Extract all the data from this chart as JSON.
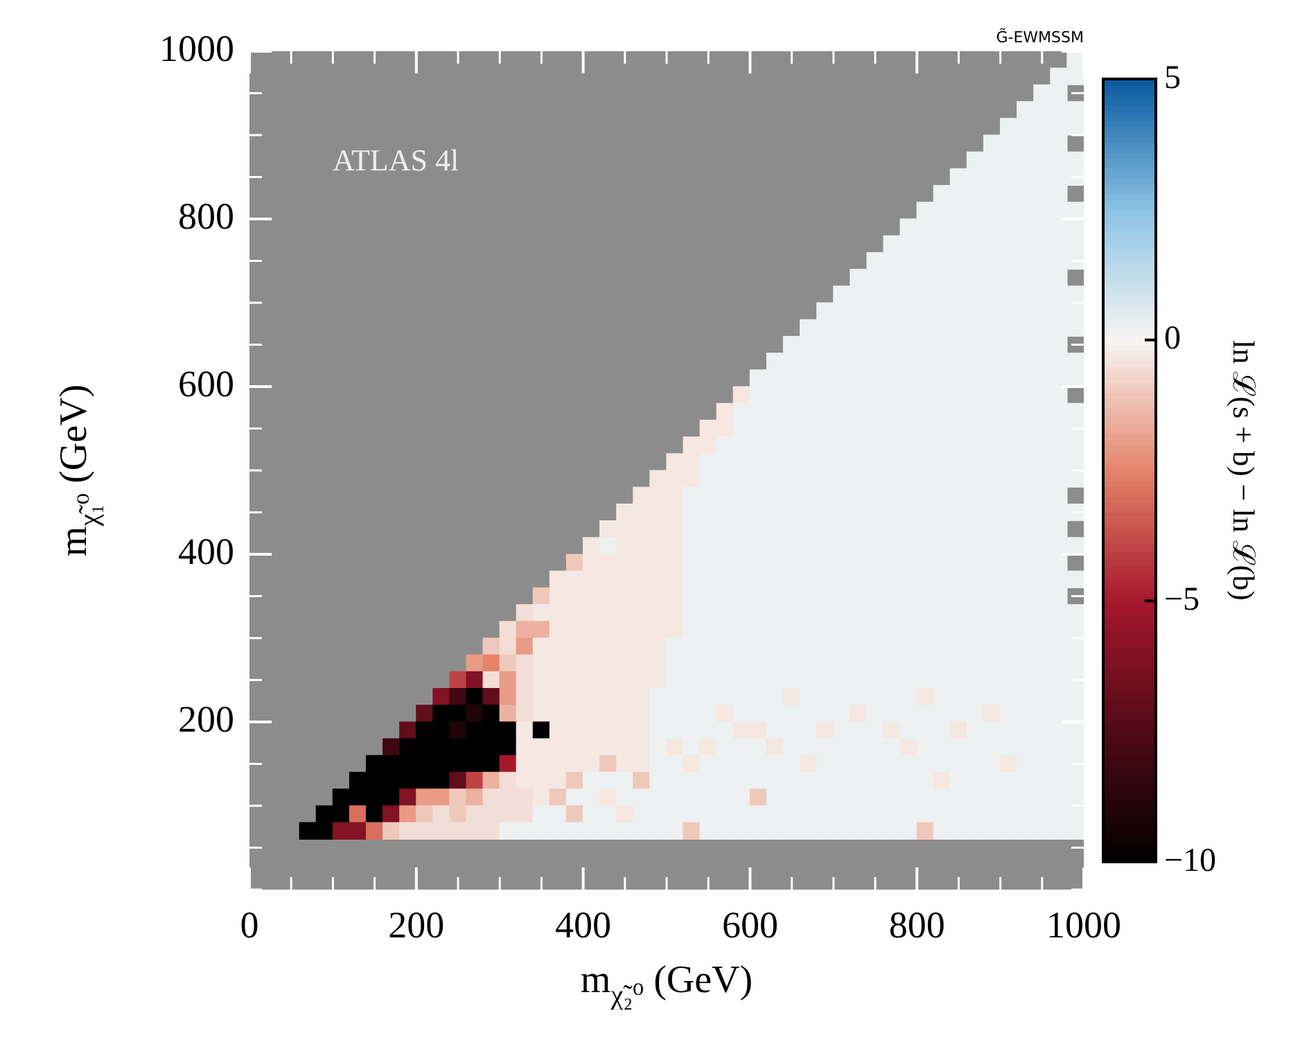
{
  "chart_data": {
    "type": "heatmap",
    "title": "G̃-EWMSSM",
    "xlabel": "m$_{χ̃₂⁰}$ (GeV)",
    "ylabel": "m$_{χ̃₁⁰}$ (GeV)",
    "clabel": "ln ℒ(s + b) − ln ℒ(b)",
    "annotations": [
      "ATLAS 4l"
    ],
    "xlim": [
      0,
      1000
    ],
    "ylim": [
      0,
      1000
    ],
    "xticks": [
      0,
      {
        "value": 50,
        "label": null
      },
      {
        "value": 100,
        "label": null
      },
      {
        "value": 150,
        "label": null
      },
      200,
      {
        "value": 250,
        "label": null
      },
      {
        "value": 300,
        "label": null
      },
      {
        "value": 350,
        "label": null
      },
      400,
      {
        "value": 450,
        "label": null
      },
      {
        "value": 500,
        "label": null
      },
      {
        "value": 550,
        "label": null
      },
      600,
      {
        "value": 650,
        "label": null
      },
      {
        "value": 700,
        "label": null
      },
      {
        "value": 750,
        "label": null
      },
      800,
      {
        "value": 850,
        "label": null
      },
      {
        "value": 900,
        "label": null
      },
      {
        "value": 950,
        "label": null
      },
      1000
    ],
    "yticks": [
      {
        "value": 0,
        "label": null
      },
      {
        "value": 50,
        "label": null
      },
      {
        "value": 100,
        "label": null
      },
      {
        "value": 150,
        "label": null
      },
      200,
      {
        "value": 250,
        "label": null
      },
      {
        "value": 300,
        "label": null
      },
      {
        "value": 350,
        "label": null
      },
      400,
      {
        "value": 450,
        "label": null
      },
      {
        "value": 500,
        "label": null
      },
      {
        "value": 550,
        "label": null
      },
      600,
      {
        "value": 650,
        "label": null
      },
      {
        "value": 700,
        "label": null
      },
      {
        "value": 750,
        "label": null
      },
      800,
      {
        "value": 850,
        "label": null
      },
      {
        "value": 900,
        "label": null
      },
      {
        "value": 950,
        "label": null
      },
      1000
    ],
    "clim": [
      -10,
      5
    ],
    "cticks": [
      -10,
      -5,
      0,
      5
    ],
    "x": [
      70,
      90,
      110,
      130,
      150,
      170,
      190,
      210,
      230,
      250,
      270,
      290,
      310,
      330,
      350,
      370,
      390,
      410,
      430,
      450,
      470,
      490,
      510,
      530,
      550,
      570,
      590,
      610,
      630,
      650,
      670,
      690,
      710,
      730,
      750,
      770,
      790,
      810,
      830,
      850,
      870,
      890,
      910,
      930,
      950,
      970,
      990
    ],
    "y": [
      990,
      970,
      950,
      930,
      910,
      890,
      870,
      850,
      830,
      810,
      790,
      770,
      750,
      730,
      710,
      690,
      670,
      650,
      630,
      610,
      590,
      570,
      550,
      530,
      510,
      490,
      470,
      450,
      430,
      410,
      390,
      370,
      350,
      330,
      310,
      290,
      270,
      250,
      230,
      210,
      190,
      170,
      150,
      130,
      110,
      90,
      70
    ],
    "cells": [
      [
        null,
        null,
        null,
        null,
        null,
        null,
        null,
        null,
        null,
        null,
        null,
        null,
        null,
        null,
        null,
        null,
        null,
        null,
        null,
        null,
        null,
        null,
        null,
        null,
        null,
        null,
        null,
        null,
        null,
        null,
        null,
        null,
        null,
        null,
        null,
        null,
        null,
        null,
        null,
        null,
        null,
        null,
        null,
        null,
        null,
        null,
        0.2
      ],
      [
        null,
        null,
        null,
        null,
        null,
        null,
        null,
        null,
        null,
        null,
        null,
        null,
        null,
        null,
        null,
        null,
        null,
        null,
        null,
        null,
        null,
        null,
        null,
        null,
        null,
        null,
        null,
        null,
        null,
        null,
        null,
        null,
        null,
        null,
        null,
        null,
        null,
        null,
        null,
        null,
        null,
        null,
        null,
        null,
        null,
        0.2,
        0.2
      ],
      [
        null,
        null,
        null,
        null,
        null,
        null,
        null,
        null,
        null,
        null,
        null,
        null,
        null,
        null,
        null,
        null,
        null,
        null,
        null,
        null,
        null,
        null,
        null,
        null,
        null,
        null,
        null,
        null,
        null,
        null,
        null,
        null,
        null,
        null,
        null,
        null,
        null,
        null,
        null,
        null,
        null,
        null,
        null,
        null,
        0.2,
        0.2,
        null
      ],
      [
        null,
        null,
        null,
        null,
        null,
        null,
        null,
        null,
        null,
        null,
        null,
        null,
        null,
        null,
        null,
        null,
        null,
        null,
        null,
        null,
        null,
        null,
        null,
        null,
        null,
        null,
        null,
        null,
        null,
        null,
        null,
        null,
        null,
        null,
        null,
        null,
        null,
        null,
        null,
        null,
        null,
        null,
        null,
        0.2,
        0.2,
        0.2,
        0.2
      ],
      [
        null,
        null,
        null,
        null,
        null,
        null,
        null,
        null,
        null,
        null,
        null,
        null,
        null,
        null,
        null,
        null,
        null,
        null,
        null,
        null,
        null,
        null,
        null,
        null,
        null,
        null,
        null,
        null,
        null,
        null,
        null,
        null,
        null,
        null,
        null,
        null,
        null,
        null,
        null,
        null,
        null,
        null,
        0.2,
        0.2,
        0.2,
        0.2,
        0.2
      ],
      [
        null,
        null,
        null,
        null,
        null,
        null,
        null,
        null,
        null,
        null,
        null,
        null,
        null,
        null,
        null,
        null,
        null,
        null,
        null,
        null,
        null,
        null,
        null,
        null,
        null,
        null,
        null,
        null,
        null,
        null,
        null,
        null,
        null,
        null,
        null,
        null,
        null,
        null,
        null,
        null,
        null,
        0.2,
        0.2,
        0.2,
        0.2,
        0.2,
        null
      ],
      [
        null,
        null,
        null,
        null,
        null,
        null,
        null,
        null,
        null,
        null,
        null,
        null,
        null,
        null,
        null,
        null,
        null,
        null,
        null,
        null,
        null,
        null,
        null,
        null,
        null,
        null,
        null,
        null,
        null,
        null,
        null,
        null,
        null,
        null,
        null,
        null,
        null,
        null,
        null,
        null,
        0.2,
        0.2,
        0.2,
        0.2,
        0.2,
        0.2,
        0.2
      ],
      [
        null,
        null,
        null,
        null,
        null,
        null,
        null,
        null,
        null,
        null,
        null,
        null,
        null,
        null,
        null,
        null,
        null,
        null,
        null,
        null,
        null,
        null,
        null,
        null,
        null,
        null,
        null,
        null,
        null,
        null,
        null,
        null,
        null,
        null,
        null,
        null,
        null,
        null,
        null,
        0.2,
        0.2,
        0.2,
        0.2,
        0.2,
        0.2,
        0.2,
        0.2
      ],
      [
        null,
        null,
        null,
        null,
        null,
        null,
        null,
        null,
        null,
        null,
        null,
        null,
        null,
        null,
        null,
        null,
        null,
        null,
        null,
        null,
        null,
        null,
        null,
        null,
        null,
        null,
        null,
        null,
        null,
        null,
        null,
        null,
        null,
        null,
        null,
        null,
        null,
        null,
        0.2,
        0.2,
        0.2,
        0.2,
        0.2,
        0.2,
        0.2,
        0.2,
        null
      ],
      [
        null,
        null,
        null,
        null,
        null,
        null,
        null,
        null,
        null,
        null,
        null,
        null,
        null,
        null,
        null,
        null,
        null,
        null,
        null,
        null,
        null,
        null,
        null,
        null,
        null,
        null,
        null,
        null,
        null,
        null,
        null,
        null,
        null,
        null,
        null,
        null,
        null,
        0.2,
        0.2,
        0.2,
        0.2,
        0.2,
        0.2,
        0.2,
        0.2,
        0.2,
        0.2
      ],
      [
        null,
        null,
        null,
        null,
        null,
        null,
        null,
        null,
        null,
        null,
        null,
        null,
        null,
        null,
        null,
        null,
        null,
        null,
        null,
        null,
        null,
        null,
        null,
        null,
        null,
        null,
        null,
        null,
        null,
        null,
        null,
        null,
        null,
        null,
        null,
        null,
        0.2,
        0.2,
        0.2,
        0.2,
        0.2,
        0.2,
        0.2,
        0.2,
        0.2,
        0.2,
        0.2
      ],
      [
        null,
        null,
        null,
        null,
        null,
        null,
        null,
        null,
        null,
        null,
        null,
        null,
        null,
        null,
        null,
        null,
        null,
        null,
        null,
        null,
        null,
        null,
        null,
        null,
        null,
        null,
        null,
        null,
        null,
        null,
        null,
        null,
        null,
        null,
        null,
        0.2,
        0.2,
        0.2,
        0.2,
        0.2,
        0.2,
        0.2,
        0.2,
        0.2,
        0.2,
        0.2,
        0.2
      ],
      [
        null,
        null,
        null,
        null,
        null,
        null,
        null,
        null,
        null,
        null,
        null,
        null,
        null,
        null,
        null,
        null,
        null,
        null,
        null,
        null,
        null,
        null,
        null,
        null,
        null,
        null,
        null,
        null,
        null,
        null,
        null,
        null,
        null,
        null,
        0.2,
        0.2,
        0.2,
        0.2,
        0.2,
        0.2,
        0.2,
        0.2,
        0.2,
        0.2,
        0.2,
        0.2,
        0.2
      ],
      [
        null,
        null,
        null,
        null,
        null,
        null,
        null,
        null,
        null,
        null,
        null,
        null,
        null,
        null,
        null,
        null,
        null,
        null,
        null,
        null,
        null,
        null,
        null,
        null,
        null,
        null,
        null,
        null,
        null,
        null,
        null,
        null,
        null,
        0.2,
        0.2,
        0.2,
        0.2,
        0.2,
        0.2,
        0.2,
        0.2,
        0.2,
        0.2,
        0.2,
        0.2,
        0.2,
        null
      ],
      [
        null,
        null,
        null,
        null,
        null,
        null,
        null,
        null,
        null,
        null,
        null,
        null,
        null,
        null,
        null,
        null,
        null,
        null,
        null,
        null,
        null,
        null,
        null,
        null,
        null,
        null,
        null,
        null,
        null,
        null,
        null,
        null,
        0.2,
        0.2,
        0.2,
        0.2,
        0.2,
        0.2,
        0.2,
        0.2,
        0.2,
        0.2,
        0.2,
        0.2,
        0.2,
        0.2,
        0.2
      ],
      [
        null,
        null,
        null,
        null,
        null,
        null,
        null,
        null,
        null,
        null,
        null,
        null,
        null,
        null,
        null,
        null,
        null,
        null,
        null,
        null,
        null,
        null,
        null,
        null,
        null,
        null,
        null,
        null,
        null,
        null,
        null,
        0.2,
        0.2,
        0.2,
        0.2,
        0.2,
        0.2,
        0.2,
        0.2,
        0.2,
        0.2,
        0.2,
        0.2,
        0.2,
        0.2,
        0.2,
        0.2
      ],
      [
        null,
        null,
        null,
        null,
        null,
        null,
        null,
        null,
        null,
        null,
        null,
        null,
        null,
        null,
        null,
        null,
        null,
        null,
        null,
        null,
        null,
        null,
        null,
        null,
        null,
        null,
        null,
        null,
        null,
        null,
        0.2,
        0.2,
        0.2,
        0.2,
        0.2,
        0.2,
        0.2,
        0.2,
        0.2,
        0.2,
        0.2,
        0.2,
        0.2,
        0.2,
        0.2,
        0.2,
        0.2
      ],
      [
        null,
        null,
        null,
        null,
        null,
        null,
        null,
        null,
        null,
        null,
        null,
        null,
        null,
        null,
        null,
        null,
        null,
        null,
        null,
        null,
        null,
        null,
        null,
        null,
        null,
        null,
        null,
        null,
        null,
        0.2,
        0.2,
        0.2,
        0.2,
        0.2,
        0.2,
        0.2,
        0.2,
        0.2,
        0.2,
        0.2,
        0.2,
        0.2,
        0.2,
        0.2,
        0.2,
        0.2,
        null
      ],
      [
        null,
        null,
        null,
        null,
        null,
        null,
        null,
        null,
        null,
        null,
        null,
        null,
        null,
        null,
        null,
        null,
        null,
        null,
        null,
        null,
        null,
        null,
        null,
        null,
        null,
        null,
        null,
        null,
        0.2,
        0.2,
        0.2,
        0.2,
        0.2,
        0.2,
        0.2,
        0.2,
        0.2,
        0.2,
        0.2,
        0.2,
        0.2,
        0.2,
        0.2,
        0.2,
        0.2,
        0.2,
        0.2
      ],
      [
        null,
        null,
        null,
        null,
        null,
        null,
        null,
        null,
        null,
        null,
        null,
        null,
        null,
        null,
        null,
        null,
        null,
        null,
        null,
        null,
        null,
        null,
        null,
        null,
        null,
        null,
        null,
        0.2,
        0.2,
        0.2,
        0.2,
        0.2,
        0.2,
        0.2,
        0.2,
        0.2,
        0.2,
        0.2,
        0.2,
        0.2,
        0.2,
        0.2,
        0.2,
        0.2,
        0.2,
        0.2,
        0.2
      ],
      [
        null,
        null,
        null,
        null,
        null,
        null,
        null,
        null,
        null,
        null,
        null,
        null,
        null,
        null,
        null,
        null,
        null,
        null,
        null,
        null,
        null,
        null,
        null,
        null,
        null,
        null,
        -0.3,
        0.2,
        0.2,
        0.2,
        0.2,
        0.2,
        0.2,
        0.2,
        0.2,
        0.2,
        0.2,
        0.2,
        0.2,
        0.2,
        0.2,
        0.2,
        0.2,
        0.2,
        0.2,
        0.2,
        null
      ],
      [
        null,
        null,
        null,
        null,
        null,
        null,
        null,
        null,
        null,
        null,
        null,
        null,
        null,
        null,
        null,
        null,
        null,
        null,
        null,
        null,
        null,
        null,
        null,
        null,
        null,
        -0.3,
        0.2,
        0.2,
        0.2,
        0.2,
        0.2,
        0.2,
        0.2,
        0.2,
        0.2,
        0.2,
        0.2,
        0.2,
        0.2,
        0.2,
        0.2,
        0.2,
        0.2,
        0.2,
        0.2,
        0.2,
        0.2
      ],
      [
        null,
        null,
        null,
        null,
        null,
        null,
        null,
        null,
        null,
        null,
        null,
        null,
        null,
        null,
        null,
        null,
        null,
        null,
        null,
        null,
        null,
        null,
        null,
        null,
        -0.3,
        -0.3,
        0.2,
        0.2,
        0.2,
        0.2,
        0.2,
        0.2,
        0.2,
        0.2,
        0.2,
        0.2,
        0.2,
        0.2,
        0.2,
        0.2,
        0.2,
        0.2,
        0.2,
        0.2,
        0.2,
        0.2,
        0.2
      ],
      [
        null,
        null,
        null,
        null,
        null,
        null,
        null,
        null,
        null,
        null,
        null,
        null,
        null,
        null,
        null,
        null,
        null,
        null,
        null,
        null,
        null,
        null,
        null,
        -0.3,
        -0.3,
        0.2,
        0.2,
        0.2,
        0.2,
        0.2,
        0.2,
        0.2,
        0.2,
        0.2,
        0.2,
        0.2,
        0.2,
        0.2,
        0.2,
        0.2,
        0.2,
        0.2,
        0.2,
        0.2,
        0.2,
        0.2,
        0.2
      ],
      [
        null,
        null,
        null,
        null,
        null,
        null,
        null,
        null,
        null,
        null,
        null,
        null,
        null,
        null,
        null,
        null,
        null,
        null,
        null,
        null,
        null,
        null,
        -0.3,
        -0.3,
        0.2,
        0.2,
        0.2,
        0.2,
        0.2,
        0.2,
        0.2,
        0.2,
        0.2,
        0.2,
        0.2,
        0.2,
        0.2,
        0.2,
        0.2,
        0.2,
        0.2,
        0.2,
        0.2,
        0.2,
        0.2,
        0.2,
        0.2
      ],
      [
        null,
        null,
        null,
        null,
        null,
        null,
        null,
        null,
        null,
        null,
        null,
        null,
        null,
        null,
        null,
        null,
        null,
        null,
        null,
        null,
        null,
        -0.3,
        -0.3,
        -0.3,
        0.2,
        0.2,
        0.2,
        0.2,
        0.2,
        0.2,
        0.2,
        0.2,
        0.2,
        0.2,
        0.2,
        0.2,
        0.2,
        0.2,
        0.2,
        0.2,
        0.2,
        0.2,
        0.2,
        0.2,
        0.2,
        0.2,
        0.2
      ],
      [
        null,
        null,
        null,
        null,
        null,
        null,
        null,
        null,
        null,
        null,
        null,
        null,
        null,
        null,
        null,
        null,
        null,
        null,
        null,
        null,
        -0.3,
        -0.3,
        -0.3,
        0.2,
        0.2,
        0.2,
        0.2,
        0.2,
        0.2,
        0.2,
        0.2,
        0.2,
        0.2,
        0.2,
        0.2,
        0.2,
        0.2,
        0.2,
        0.2,
        0.2,
        0.2,
        0.2,
        0.2,
        0.2,
        0.2,
        0.2,
        null
      ],
      [
        null,
        null,
        null,
        null,
        null,
        null,
        null,
        null,
        null,
        null,
        null,
        null,
        null,
        null,
        null,
        null,
        null,
        null,
        null,
        -0.3,
        -0.3,
        -0.3,
        -0.3,
        0.2,
        0.2,
        0.2,
        0.2,
        0.2,
        0.2,
        0.2,
        0.2,
        0.2,
        0.2,
        0.2,
        0.2,
        0.2,
        0.2,
        0.2,
        0.2,
        0.2,
        0.2,
        0.2,
        0.2,
        0.2,
        0.2,
        0.2,
        0.2
      ],
      [
        null,
        null,
        null,
        null,
        null,
        null,
        null,
        null,
        null,
        null,
        null,
        null,
        null,
        null,
        null,
        null,
        null,
        null,
        -0.3,
        -0.3,
        -0.3,
        -0.3,
        -0.3,
        0.2,
        0.2,
        0.2,
        0.2,
        0.2,
        0.2,
        0.2,
        0.2,
        0.2,
        0.2,
        0.2,
        0.2,
        0.2,
        0.2,
        0.2,
        0.2,
        0.2,
        0.2,
        0.2,
        0.2,
        0.2,
        0.2,
        0.2,
        null
      ],
      [
        null,
        null,
        null,
        null,
        null,
        null,
        null,
        null,
        null,
        null,
        null,
        null,
        null,
        null,
        null,
        null,
        null,
        -0.3,
        0.2,
        -0.3,
        -0.3,
        -0.3,
        -0.3,
        0.2,
        0.2,
        0.2,
        0.2,
        0.2,
        0.2,
        0.2,
        0.2,
        0.2,
        0.2,
        0.2,
        0.2,
        0.2,
        0.2,
        0.2,
        0.2,
        0.2,
        0.2,
        0.2,
        0.2,
        0.2,
        0.2,
        0.2,
        0.2
      ],
      [
        null,
        null,
        null,
        null,
        null,
        null,
        null,
        null,
        null,
        null,
        null,
        null,
        null,
        null,
        null,
        null,
        -1,
        -0.3,
        -0.3,
        -0.3,
        -0.3,
        -0.3,
        -0.3,
        0.2,
        0.2,
        0.2,
        0.2,
        0.2,
        0.2,
        0.2,
        0.2,
        0.2,
        0.2,
        0.2,
        0.2,
        0.2,
        0.2,
        0.2,
        0.2,
        0.2,
        0.2,
        0.2,
        0.2,
        0.2,
        0.2,
        0.2,
        null
      ],
      [
        null,
        null,
        null,
        null,
        null,
        null,
        null,
        null,
        null,
        null,
        null,
        null,
        null,
        null,
        null,
        -0.3,
        -0.3,
        -0.3,
        -0.3,
        -0.3,
        -0.3,
        -0.3,
        -0.3,
        0.2,
        0.2,
        0.2,
        0.2,
        0.2,
        0.2,
        0.2,
        0.2,
        0.2,
        0.2,
        0.2,
        0.2,
        0.2,
        0.2,
        0.2,
        0.2,
        0.2,
        0.2,
        0.2,
        0.2,
        0.2,
        0.2,
        0.2,
        0.2
      ],
      [
        null,
        null,
        null,
        null,
        null,
        null,
        null,
        null,
        null,
        null,
        null,
        null,
        null,
        null,
        -1,
        -0.3,
        -0.3,
        -0.3,
        -0.3,
        -0.3,
        -0.3,
        -0.3,
        -0.3,
        0.2,
        0.2,
        0.2,
        0.2,
        0.2,
        0.2,
        0.2,
        0.2,
        0.2,
        0.2,
        0.2,
        0.2,
        0.2,
        0.2,
        0.2,
        0.2,
        0.2,
        0.2,
        0.2,
        0.2,
        0.2,
        0.2,
        0.2,
        null
      ],
      [
        null,
        null,
        null,
        null,
        null,
        null,
        null,
        null,
        null,
        null,
        null,
        null,
        null,
        -0.5,
        -0.3,
        -0.3,
        -0.3,
        -0.3,
        -0.3,
        -0.3,
        -0.3,
        -0.3,
        -0.3,
        0.2,
        0.2,
        0.2,
        0.2,
        0.2,
        0.2,
        0.2,
        0.2,
        0.2,
        0.2,
        0.2,
        0.2,
        0.2,
        0.2,
        0.2,
        0.2,
        0.2,
        0.2,
        0.2,
        0.2,
        0.2,
        0.2,
        0.2,
        0.2
      ],
      [
        null,
        null,
        null,
        null,
        null,
        null,
        null,
        null,
        null,
        null,
        null,
        null,
        -0.5,
        -1.5,
        -1.5,
        -0.3,
        -0.3,
        -0.3,
        -0.3,
        -0.3,
        -0.3,
        -0.3,
        -0.3,
        0.2,
        0.2,
        0.2,
        0.2,
        0.2,
        0.2,
        0.2,
        0.2,
        0.2,
        0.2,
        0.2,
        0.2,
        0.2,
        0.2,
        0.2,
        0.2,
        0.2,
        0.2,
        0.2,
        0.2,
        0.2,
        0.2,
        0.2,
        0.2
      ],
      [
        null,
        null,
        null,
        null,
        null,
        null,
        null,
        null,
        null,
        null,
        null,
        -1,
        -0.5,
        -2,
        -0.3,
        -0.3,
        -0.3,
        -0.3,
        -0.3,
        -0.3,
        -0.3,
        -0.3,
        0.2,
        0.2,
        0.2,
        0.2,
        0.2,
        0.2,
        0.2,
        0.2,
        0.2,
        0.2,
        0.2,
        0.2,
        0.2,
        0.2,
        0.2,
        0.2,
        0.2,
        0.2,
        0.2,
        0.2,
        0.2,
        0.2,
        0.2,
        0.2,
        0.2
      ],
      [
        null,
        null,
        null,
        null,
        null,
        null,
        null,
        null,
        null,
        null,
        -2,
        -2.5,
        -1,
        -0.5,
        -0.3,
        -0.3,
        -0.3,
        -0.3,
        -0.3,
        -0.3,
        -0.3,
        -0.3,
        0.2,
        0.2,
        0.2,
        0.2,
        0.2,
        0.2,
        0.2,
        0.2,
        0.2,
        0.2,
        0.2,
        0.2,
        0.2,
        0.2,
        0.2,
        0.2,
        0.2,
        0.2,
        0.2,
        0.2,
        0.2,
        0.2,
        0.2,
        0.2,
        0.2
      ],
      [
        null,
        null,
        null,
        null,
        null,
        null,
        null,
        null,
        null,
        -4,
        -6,
        -0.5,
        -2,
        -0.5,
        -0.3,
        -0.3,
        -0.3,
        -0.3,
        -0.3,
        -0.3,
        -0.3,
        -0.3,
        0.2,
        0.2,
        0.2,
        0.2,
        0.2,
        0.2,
        0.2,
        0.2,
        0.2,
        0.2,
        0.2,
        0.2,
        0.2,
        0.2,
        0.2,
        0.2,
        0.2,
        0.2,
        0.2,
        0.2,
        0.2,
        0.2,
        0.2,
        0.2,
        0.2
      ],
      [
        null,
        null,
        null,
        null,
        null,
        null,
        null,
        null,
        -6,
        -8,
        -10,
        -7,
        -2,
        -0.5,
        -0.3,
        -0.3,
        -0.3,
        -0.3,
        -0.3,
        -0.3,
        -0.3,
        0.2,
        0.2,
        0.2,
        0.2,
        0.2,
        0.2,
        0.2,
        0.2,
        -0.3,
        0.2,
        0.2,
        0.2,
        0.2,
        0.2,
        0.2,
        0.2,
        -0.3,
        0.2,
        0.2,
        0.2,
        0.2,
        0.2,
        0.2,
        0.2,
        0.2,
        0.2
      ],
      [
        null,
        null,
        null,
        null,
        null,
        null,
        null,
        -7,
        -10,
        -10,
        -9,
        -10,
        -1.5,
        -0.5,
        -0.3,
        -0.3,
        -0.3,
        -0.3,
        -0.3,
        -0.3,
        -0.3,
        0.2,
        0.2,
        0.2,
        0.2,
        -0.3,
        0.2,
        0.2,
        0.2,
        0.2,
        0.2,
        0.2,
        0.2,
        -0.3,
        0.2,
        0.2,
        0.2,
        0.2,
        0.2,
        0.2,
        0.2,
        -0.3,
        0.2,
        0.2,
        0.2,
        0.2,
        0.2
      ],
      [
        null,
        null,
        null,
        null,
        null,
        null,
        -7,
        -10,
        -10,
        -9,
        -10,
        -10,
        -10,
        -0.3,
        -10,
        -0.3,
        -0.3,
        -0.3,
        -0.3,
        -0.3,
        -0.3,
        0.2,
        0.2,
        0.2,
        0.2,
        0.2,
        -0.3,
        -0.3,
        0.2,
        0.2,
        0.2,
        -0.3,
        0.2,
        0.2,
        0.2,
        -0.3,
        0.2,
        0.2,
        0.2,
        -0.3,
        0.2,
        0.2,
        0.2,
        0.2,
        0.2,
        0.2,
        0.2
      ],
      [
        null,
        null,
        null,
        null,
        null,
        -8,
        -10,
        -10,
        -10,
        -10,
        -10,
        -10,
        -10,
        -0.3,
        -0.3,
        -0.3,
        -0.3,
        -0.3,
        -0.3,
        -0.3,
        -0.3,
        0.2,
        -0.3,
        0.2,
        -0.3,
        0.2,
        0.2,
        0.2,
        -0.3,
        0.2,
        0.2,
        0.2,
        0.2,
        0.2,
        0.2,
        0.2,
        -0.3,
        0.2,
        0.2,
        0.2,
        0.2,
        0.2,
        0.2,
        0.2,
        0.2,
        0.2,
        0.2
      ],
      [
        null,
        null,
        null,
        null,
        -10,
        -10,
        -10,
        -10,
        -10,
        -10,
        -10,
        -10,
        -5,
        -0.3,
        -0.3,
        -0.3,
        -0.3,
        -0.3,
        -1,
        -0.3,
        -0.3,
        0.2,
        0.2,
        -0.3,
        0.2,
        0.2,
        0.2,
        0.2,
        0.2,
        0.2,
        -0.3,
        0.2,
        0.2,
        0.2,
        0.2,
        0.2,
        0.2,
        0.2,
        0.2,
        0.2,
        0.2,
        0.2,
        -0.3,
        0.2,
        0.2,
        0.2,
        0.2
      ],
      [
        null,
        null,
        null,
        -10,
        -10,
        -10,
        -10,
        -10,
        -10,
        -7,
        -4,
        -1.5,
        -0.5,
        -0.3,
        -0.3,
        -0.3,
        -1,
        0.2,
        0.2,
        0.2,
        -1,
        0.2,
        0.2,
        0.2,
        0.2,
        0.2,
        0.2,
        0.2,
        0.2,
        0.2,
        0.2,
        0.2,
        0.2,
        0.2,
        0.2,
        0.2,
        0.2,
        0.2,
        -0.3,
        0.2,
        0.2,
        0.2,
        0.2,
        0.2,
        0.2,
        0.2,
        0.2
      ],
      [
        null,
        null,
        -10,
        -10,
        -10,
        -10,
        -6,
        -2,
        -2,
        -1,
        -1.5,
        -0.5,
        -0.5,
        -0.5,
        -0.3,
        -1,
        0.2,
        0.2,
        -0.3,
        0.2,
        0.2,
        0.2,
        0.2,
        0.2,
        0.2,
        0.2,
        0.2,
        -1,
        0.2,
        0.2,
        0.2,
        0.2,
        0.2,
        0.2,
        0.2,
        0.2,
        0.2,
        0.2,
        0.2,
        0.2,
        0.2,
        0.2,
        0.2,
        0.2,
        0.2,
        0.2,
        0.2
      ],
      [
        null,
        -10,
        -10,
        -3,
        -10,
        -6,
        -2,
        -1,
        -0.5,
        -1,
        -0.5,
        -0.5,
        -0.5,
        -0.5,
        0.2,
        0.2,
        -1,
        0.2,
        0.2,
        -0.3,
        0.2,
        0.2,
        0.2,
        0.2,
        0.2,
        0.2,
        0.2,
        0.2,
        0.2,
        0.2,
        0.2,
        0.2,
        0.2,
        0.2,
        0.2,
        0.2,
        0.2,
        0.2,
        0.2,
        0.2,
        0.2,
        0.2,
        0.2,
        0.2,
        0.2,
        0.2,
        0.2
      ],
      [
        -10,
        -10,
        -6,
        -6,
        -3,
        -1,
        -0.5,
        -0.5,
        -0.5,
        -0.5,
        -0.5,
        -0.5,
        0.2,
        0.2,
        0.2,
        0.2,
        0.2,
        0.2,
        0.2,
        0.2,
        0.2,
        0.2,
        0.2,
        -1,
        0.2,
        0.2,
        0.2,
        0.2,
        0.2,
        0.2,
        0.2,
        0.2,
        0.2,
        0.2,
        0.2,
        0.2,
        0.2,
        -1,
        0.2,
        0.2,
        0.2,
        0.2,
        0.2,
        0.2,
        0.2,
        0.2,
        0.2
      ]
    ]
  }
}
